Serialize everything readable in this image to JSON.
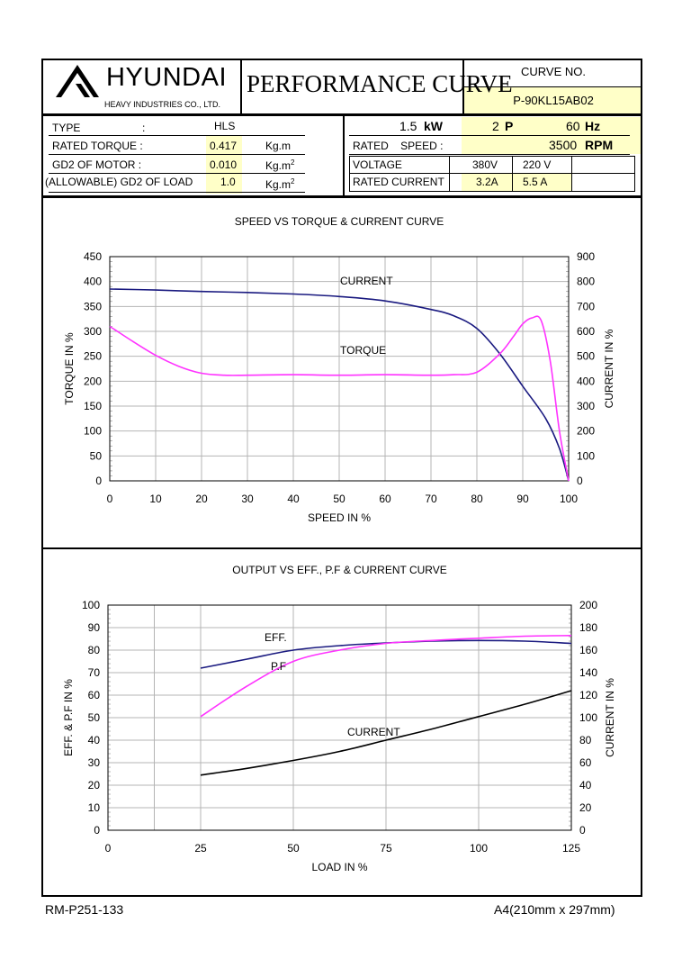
{
  "header": {
    "brand": "HYUNDAI",
    "company": "HEAVY INDUSTRIES CO., LTD.",
    "doc_title": "PERFORMANCE CURVE",
    "curve_no_label": "CURVE NO.",
    "curve_no": "P-90KL15AB02"
  },
  "specs": {
    "type_label": "TYPE",
    "type_colon": ":",
    "type_value": "HLS",
    "rated_torque_label": "RATED TORQUE :",
    "rated_torque_value": "0.417",
    "rated_torque_unit": "Kg.m",
    "gd2_motor_label": "GD2 OF MOTOR :",
    "gd2_motor_value": "0.010",
    "gd2_motor_unit": "Kg.m",
    "gd2_load_label": "(ALLOWABLE) GD2 OF LOAD",
    "gd2_load_value": "1.0",
    "gd2_load_unit": "Kg.m",
    "unit_sup": "2",
    "power_value": "1.5",
    "power_unit": "kW",
    "poles_value": "2",
    "poles_unit": "P",
    "freq_value": "60",
    "freq_unit": "Hz",
    "rated_speed_label": "RATED    SPEED :",
    "rated_speed_value": "3500",
    "rated_speed_unit": "RPM",
    "voltage_label": "VOLTAGE",
    "voltage_1": "380V",
    "voltage_2": "220 V",
    "current_label": "RATED CURRENT",
    "current_1": "3.2A",
    "current_2": "5.5 A"
  },
  "footer": {
    "left": "RM-P251-133",
    "right": "A4(210mm x 297mm)"
  },
  "colors": {
    "current": "#1a1a80",
    "torque": "#ff33ff",
    "black": "#000000",
    "highlight": "#ffffc8"
  },
  "chart_data": [
    {
      "type": "line",
      "title": "SPEED VS TORQUE & CURRENT CURVE",
      "xlabel": "SPEED IN %",
      "ylabel": "TORQUE IN %",
      "y2label": "CURRENT IN %",
      "xlim": [
        0,
        100
      ],
      "ylim": [
        0,
        450
      ],
      "y2lim": [
        0,
        900
      ],
      "xticks": [
        0,
        10,
        20,
        30,
        40,
        50,
        60,
        70,
        80,
        90,
        100
      ],
      "yticks": [
        0,
        50,
        100,
        150,
        200,
        250,
        300,
        350,
        400,
        450
      ],
      "y2ticks": [
        0,
        100,
        200,
        300,
        400,
        500,
        600,
        700,
        800,
        900
      ],
      "grid": true,
      "series": [
        {
          "name": "CURRENT",
          "axis": "y2",
          "color": "#1a1a80",
          "x": [
            0,
            10,
            20,
            30,
            40,
            50,
            60,
            70,
            75,
            80,
            85,
            90,
            95,
            98,
            100
          ],
          "y": [
            770,
            766,
            760,
            756,
            750,
            740,
            722,
            688,
            662,
            612,
            510,
            380,
            250,
            130,
            0
          ]
        },
        {
          "name": "TORQUE",
          "axis": "y",
          "color": "#ff33ff",
          "x": [
            0,
            5,
            10,
            15,
            20,
            25,
            30,
            40,
            50,
            60,
            70,
            75,
            80,
            85,
            88,
            90,
            92,
            94,
            96,
            98,
            100
          ],
          "y": [
            310,
            280,
            252,
            230,
            216,
            212,
            212,
            213,
            212,
            213,
            212,
            213,
            218,
            255,
            290,
            315,
            327,
            322,
            240,
            100,
            0
          ]
        }
      ],
      "annotations": [
        "CURRENT",
        "TORQUE"
      ]
    },
    {
      "type": "line",
      "title": "OUTPUT VS EFF., P.F & CURRENT CURVE",
      "xlabel": "LOAD IN %",
      "ylabel": "EFF. & P.F IN %",
      "y2label": "CURRENT IN %",
      "xlim": [
        0,
        125
      ],
      "ylim": [
        0,
        100
      ],
      "y2lim": [
        0,
        200
      ],
      "xticks": [
        0,
        25,
        50,
        75,
        100,
        125
      ],
      "yticks": [
        0,
        10,
        20,
        30,
        40,
        50,
        60,
        70,
        80,
        90,
        100
      ],
      "y2ticks": [
        0,
        20,
        40,
        60,
        80,
        100,
        120,
        140,
        160,
        180,
        200
      ],
      "grid": true,
      "series": [
        {
          "name": "EFF.",
          "axis": "y",
          "color": "#1a1a80",
          "x": [
            25,
            37.5,
            50,
            62.5,
            75,
            87.5,
            100,
            112.5,
            125
          ],
          "y": [
            72,
            76,
            80,
            82,
            83.2,
            84,
            84.3,
            84,
            83
          ]
        },
        {
          "name": "P.F",
          "axis": "y",
          "color": "#ff33ff",
          "x": [
            25,
            37.5,
            50,
            62.5,
            75,
            87.5,
            100,
            112.5,
            125
          ],
          "y": [
            50.5,
            64,
            75,
            80,
            83,
            84.3,
            85.3,
            86.2,
            86.5
          ]
        },
        {
          "name": "CURRENT",
          "axis": "y2",
          "color": "#000000",
          "x": [
            25,
            37.5,
            50,
            62.5,
            75,
            87.5,
            100,
            112.5,
            125
          ],
          "y": [
            49,
            55,
            62,
            70,
            80,
            90,
            101,
            112,
            124
          ]
        }
      ],
      "annotations": [
        "EFF.",
        "P.F",
        "CURRENT"
      ]
    }
  ]
}
